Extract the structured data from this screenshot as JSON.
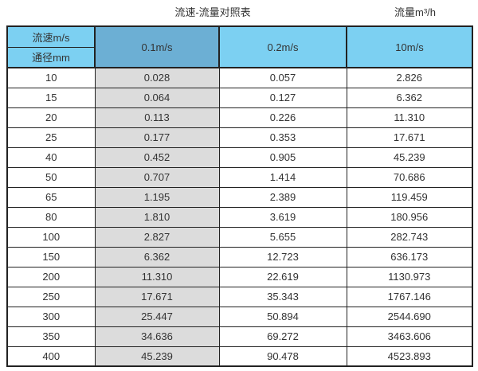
{
  "chart_data": {
    "type": "table",
    "title": "流速-流量对照表",
    "unit_label": "流量m³/h",
    "corner": {
      "top": "流速m/s",
      "bottom": "通径mm"
    },
    "velocity_headers": [
      "0.1m/s",
      "0.2m/s",
      "10m/s"
    ],
    "columns": [
      "通径mm",
      "0.1m/s",
      "0.2m/s",
      "10m/s"
    ],
    "rows": [
      {
        "diameter_mm": "10",
        "flow": [
          "0.028",
          "0.057",
          "2.826"
        ]
      },
      {
        "diameter_mm": "15",
        "flow": [
          "0.064",
          "0.127",
          "6.362"
        ]
      },
      {
        "diameter_mm": "20",
        "flow": [
          "0.113",
          "0.226",
          "11.310"
        ]
      },
      {
        "diameter_mm": "25",
        "flow": [
          "0.177",
          "0.353",
          "17.671"
        ]
      },
      {
        "diameter_mm": "40",
        "flow": [
          "0.452",
          "0.905",
          "45.239"
        ]
      },
      {
        "diameter_mm": "50",
        "flow": [
          "0.707",
          "1.414",
          "70.686"
        ]
      },
      {
        "diameter_mm": "65",
        "flow": [
          "1.195",
          "2.389",
          "119.459"
        ]
      },
      {
        "diameter_mm": "80",
        "flow": [
          "1.810",
          "3.619",
          "180.956"
        ]
      },
      {
        "diameter_mm": "100",
        "flow": [
          "2.827",
          "5.655",
          "282.743"
        ]
      },
      {
        "diameter_mm": "150",
        "flow": [
          "6.362",
          "12.723",
          "636.173"
        ]
      },
      {
        "diameter_mm": "200",
        "flow": [
          "11.310",
          "22.619",
          "1130.973"
        ]
      },
      {
        "diameter_mm": "250",
        "flow": [
          "17.671",
          "35.343",
          "1767.146"
        ]
      },
      {
        "diameter_mm": "300",
        "flow": [
          "25.447",
          "50.894",
          "2544.690"
        ]
      },
      {
        "diameter_mm": "350",
        "flow": [
          "34.636",
          "69.272",
          "3463.606"
        ]
      },
      {
        "diameter_mm": "400",
        "flow": [
          "45.239",
          "90.478",
          "4523.893"
        ]
      }
    ]
  },
  "colors": {
    "header_blue": "#7cd0f2",
    "header_blue_dark": "#6cafd4",
    "shaded_column": "#dcdcdc",
    "border": "#222222",
    "text": "#333333"
  }
}
